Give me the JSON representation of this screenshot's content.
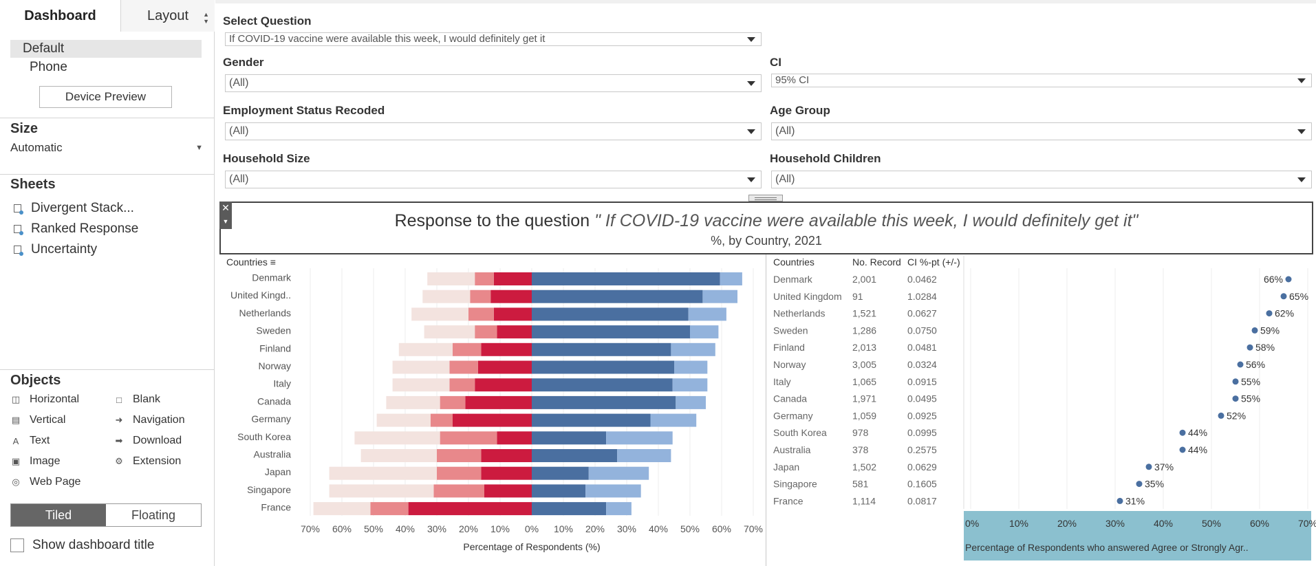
{
  "left_panel": {
    "tabs": {
      "dashboard": "Dashboard",
      "layout": "Layout"
    },
    "devices": [
      "Default",
      "Phone"
    ],
    "device_preview": "Device Preview",
    "size": {
      "title": "Size",
      "value": "Automatic"
    },
    "sheets": {
      "title": "Sheets",
      "items": [
        "Divergent Stack...",
        "Ranked Response",
        "Uncertainty"
      ]
    },
    "objects": {
      "title": "Objects",
      "items": [
        {
          "label": "Horizontal",
          "icon": "horizontal-icon"
        },
        {
          "label": "Blank",
          "icon": "blank-icon"
        },
        {
          "label": "Vertical",
          "icon": "vertical-icon"
        },
        {
          "label": "Navigation",
          "icon": "navigation-icon"
        },
        {
          "label": "Text",
          "icon": "text-icon"
        },
        {
          "label": "Download",
          "icon": "download-icon"
        },
        {
          "label": "Image",
          "icon": "image-icon"
        },
        {
          "label": "Extension",
          "icon": "extension-icon"
        },
        {
          "label": "Web Page",
          "icon": "web-page-icon"
        }
      ]
    },
    "tiled": "Tiled",
    "floating": "Floating",
    "show_title": "Show dashboard title"
  },
  "filters": {
    "question": {
      "label": "Select Question",
      "value": "If COVID-19 vaccine were available this week, I would definitely get it"
    },
    "gender": {
      "label": "Gender",
      "value": "(All)"
    },
    "ci": {
      "label": "CI",
      "value": "95% CI"
    },
    "employment": {
      "label": "Employment Status Recoded",
      "value": "(All)"
    },
    "age": {
      "label": "Age Group",
      "value": "(All)"
    },
    "household_size": {
      "label": "Household Size",
      "value": "(All)"
    },
    "household_children": {
      "label": "Household Children",
      "value": "(All)"
    }
  },
  "title": {
    "prefix": "Response to the question",
    "question": "\" If COVID-19 vaccine were available this week, I would definitely get it\"",
    "subtitle": "%, by Country, 2021"
  },
  "chart_data": [
    {
      "type": "bar",
      "subtype": "diverging-stacked",
      "row_header": "Countries",
      "categories": [
        "Denmark",
        "United Kingd..",
        "Netherlands",
        "Sweden",
        "Finland",
        "Norway",
        "Italy",
        "Canada",
        "Germany",
        "South Korea",
        "Australia",
        "Japan",
        "Singapore",
        "France"
      ],
      "xlabel": "Percentage of Respondents (%)",
      "xlim": [
        -70,
        70
      ],
      "ticks": [
        "70%",
        "60%",
        "50%",
        "40%",
        "30%",
        "20%",
        "10%",
        "0%",
        "10%",
        "20%",
        "30%",
        "40%",
        "50%",
        "60%",
        "70%"
      ],
      "series": [
        {
          "side": "negative",
          "color": "#cc1b3f",
          "values": [
            12,
            13,
            12,
            11,
            16,
            17,
            18,
            21,
            25,
            11,
            16,
            16,
            15,
            39
          ]
        },
        {
          "side": "negative",
          "color": "#e8888b",
          "values": [
            6,
            6.5,
            8,
            7,
            9,
            9,
            8,
            8,
            7,
            18,
            14,
            14,
            16,
            12
          ]
        },
        {
          "side": "negative",
          "color": "#f3e3df",
          "values": [
            15,
            15,
            18,
            16,
            17,
            18,
            18,
            17,
            17,
            27,
            24,
            34,
            33,
            18
          ]
        },
        {
          "side": "positive",
          "color": "#4a6fa0",
          "values": [
            59.5,
            54,
            49.5,
            50,
            44,
            45,
            44.5,
            45.5,
            37.5,
            23.5,
            27,
            18,
            17,
            23.5
          ]
        },
        {
          "side": "positive",
          "color": "#93b3dc",
          "values": [
            7,
            11,
            12,
            9,
            14,
            10.5,
            11,
            9.5,
            14.5,
            21,
            17,
            19,
            17.5,
            8
          ]
        }
      ]
    },
    {
      "type": "scatter",
      "subtype": "dot-plot",
      "table_headers": [
        "Countries",
        "No. Record",
        "CI %-pt (+/-)"
      ],
      "categories": [
        "Denmark",
        "United Kingdom",
        "Netherlands",
        "Sweden",
        "Finland",
        "Norway",
        "Italy",
        "Canada",
        "Germany",
        "South Korea",
        "Australia",
        "Japan",
        "Singapore",
        "France"
      ],
      "records": [
        "2,001",
        "91",
        "1,521",
        "1,286",
        "2,013",
        "3,005",
        "1,065",
        "1,971",
        "1,059",
        "978",
        "378",
        "1,502",
        "581",
        "1,114"
      ],
      "ci": [
        "0.0462",
        "1.0284",
        "0.0627",
        "0.0750",
        "0.0481",
        "0.0324",
        "0.0915",
        "0.0495",
        "0.0925",
        "0.0995",
        "0.2575",
        "0.0629",
        "0.1605",
        "0.0817"
      ],
      "values": [
        66,
        65,
        62,
        59,
        58,
        56,
        55,
        55,
        52,
        44,
        44,
        37,
        35,
        31
      ],
      "labels": [
        "66%",
        "65%",
        "62%",
        "59%",
        "58%",
        "56%",
        "55%",
        "55%",
        "52%",
        "44%",
        "44%",
        "37%",
        "35%",
        "31%"
      ],
      "xlim": [
        0,
        70
      ],
      "ticks": [
        "0%",
        "10%",
        "20%",
        "30%",
        "40%",
        "50%",
        "60%",
        "70%"
      ],
      "xlabel": "Percentage of Respondents who answered Agree or Strongly Agr..",
      "axis_color": "#8bc0cf",
      "dot_color": "#4a6fa0"
    }
  ]
}
